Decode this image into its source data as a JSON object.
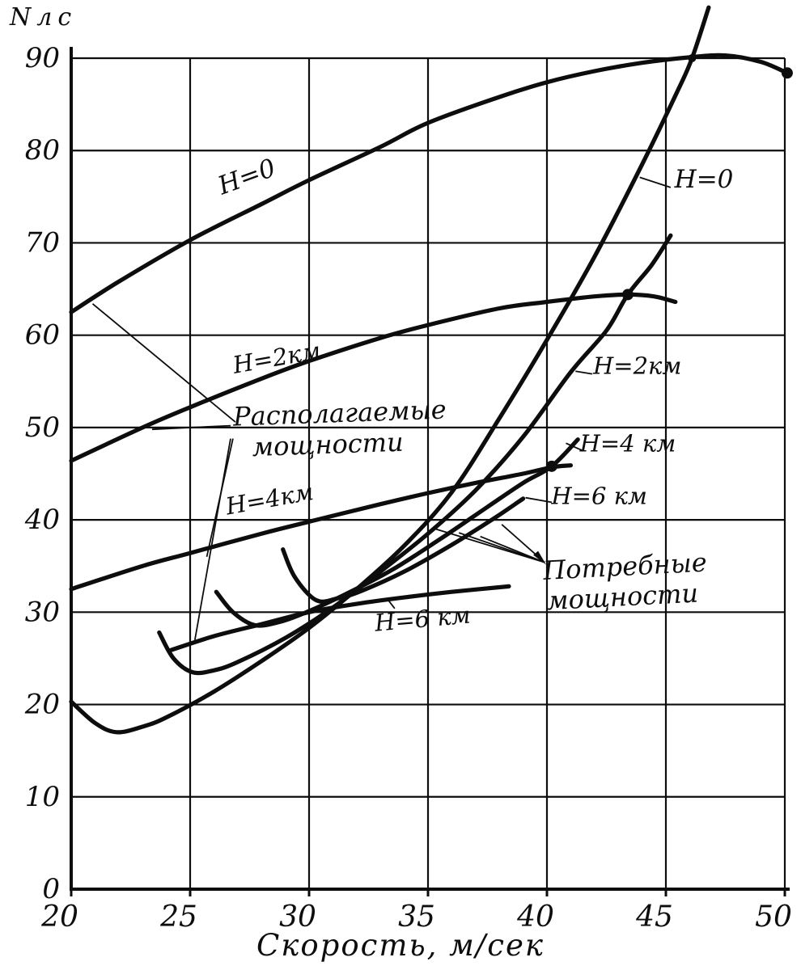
{
  "ink": "#0d0d0d",
  "background": "#ffffff",
  "chart_data": {
    "type": "line",
    "title": "",
    "ylabel": "Nлс",
    "xlabel": "Скорость,  м/сек",
    "xlim": [
      20,
      50
    ],
    "ylim": [
      0,
      90
    ],
    "x_ticks": [
      20,
      25,
      30,
      35,
      40,
      45,
      50
    ],
    "y_ticks": [
      0,
      10,
      20,
      30,
      40,
      50,
      60,
      70,
      80,
      90
    ],
    "grid": true,
    "legend_position": "inline-labels",
    "families": [
      {
        "name": "Располагаемые мощности",
        "series": [
          {
            "id": "avail-h0",
            "label": "H=0",
            "points": [
              [
                20,
                62.5
              ],
              [
                22,
                65.8
              ],
              [
                25,
                70.3
              ],
              [
                28,
                74.2
              ],
              [
                30,
                76.8
              ],
              [
                33,
                80.4
              ],
              [
                35,
                83.0
              ],
              [
                38,
                85.8
              ],
              [
                40,
                87.4
              ],
              [
                42,
                88.6
              ],
              [
                44,
                89.5
              ],
              [
                46,
                90.1
              ],
              [
                47.5,
                90.3
              ],
              [
                49,
                89.6
              ],
              [
                50.1,
                88.4
              ]
            ]
          },
          {
            "id": "avail-h2",
            "label": "H=2км",
            "points": [
              [
                20,
                46.4
              ],
              [
                23,
                50.0
              ],
              [
                25,
                52.2
              ],
              [
                28,
                55.3
              ],
              [
                30,
                57.2
              ],
              [
                33,
                59.7
              ],
              [
                35,
                61.1
              ],
              [
                38,
                62.9
              ],
              [
                40,
                63.6
              ],
              [
                42,
                64.2
              ],
              [
                43.4,
                64.4
              ],
              [
                44.5,
                64.2
              ],
              [
                45.4,
                63.6
              ]
            ]
          },
          {
            "id": "avail-h4",
            "label": "H=4км",
            "points": [
              [
                20,
                32.5
              ],
              [
                23,
                35.0
              ],
              [
                25,
                36.4
              ],
              [
                28,
                38.5
              ],
              [
                30,
                39.8
              ],
              [
                33,
                41.7
              ],
              [
                35,
                42.9
              ],
              [
                37,
                44.0
              ],
              [
                39,
                45.0
              ],
              [
                40.2,
                45.7
              ],
              [
                41,
                45.9
              ]
            ]
          },
          {
            "id": "avail-h6",
            "label": "H=6км",
            "points": [
              [
                24.2,
                25.9
              ],
              [
                26,
                27.4
              ],
              [
                28,
                28.7
              ],
              [
                30,
                30.0
              ],
              [
                32,
                30.9
              ],
              [
                34,
                31.6
              ],
              [
                36,
                32.2
              ],
              [
                38.4,
                32.8
              ]
            ]
          }
        ]
      },
      {
        "name": "Потребные мощности",
        "series": [
          {
            "id": "req-h0",
            "label": "H=0",
            "points": [
              [
                20,
                20.3
              ],
              [
                21,
                18.0
              ],
              [
                21.9,
                17.0
              ],
              [
                23,
                17.6
              ],
              [
                24,
                18.6
              ],
              [
                26,
                21.4
              ],
              [
                28,
                24.7
              ],
              [
                30,
                28.3
              ],
              [
                32,
                32.5
              ],
              [
                34,
                37.2
              ],
              [
                36,
                43.0
              ],
              [
                38,
                51.0
              ],
              [
                40,
                59.5
              ],
              [
                42,
                68.5
              ],
              [
                44,
                78.5
              ],
              [
                45.5,
                86.5
              ],
              [
                46.1,
                90.0
              ],
              [
                46.8,
                95.5
              ]
            ]
          },
          {
            "id": "req-h2",
            "label": "H=2км",
            "points": [
              [
                23.7,
                27.8
              ],
              [
                24.3,
                25.0
              ],
              [
                25.1,
                23.5
              ],
              [
                26,
                23.7
              ],
              [
                27,
                24.6
              ],
              [
                29,
                27.2
              ],
              [
                31,
                30.5
              ],
              [
                33,
                34.4
              ],
              [
                35,
                38.5
              ],
              [
                37,
                43.2
              ],
              [
                39,
                49.0
              ],
              [
                41,
                56.0
              ],
              [
                42.5,
                60.5
              ],
              [
                43.4,
                64.4
              ],
              [
                44.4,
                67.6
              ],
              [
                45.2,
                70.8
              ]
            ]
          },
          {
            "id": "req-h4",
            "label": "H=4 км",
            "points": [
              [
                26.1,
                32.2
              ],
              [
                26.8,
                30.0
              ],
              [
                27.7,
                28.6
              ],
              [
                28.7,
                28.9
              ],
              [
                29.8,
                29.9
              ],
              [
                31.5,
                31.9
              ],
              [
                33.5,
                34.6
              ],
              [
                35.5,
                37.9
              ],
              [
                37.5,
                41.4
              ],
              [
                39,
                44.0
              ],
              [
                40.2,
                45.8
              ],
              [
                41.3,
                48.7
              ]
            ]
          },
          {
            "id": "req-h6",
            "label": "H=6 км",
            "points": [
              [
                28.9,
                36.8
              ],
              [
                29.4,
                33.8
              ],
              [
                30.3,
                31.3
              ],
              [
                31.2,
                31.5
              ],
              [
                32.2,
                32.3
              ],
              [
                34,
                34.4
              ],
              [
                36,
                37.3
              ],
              [
                37.8,
                40.2
              ],
              [
                39,
                42.3
              ]
            ]
          }
        ]
      }
    ],
    "intersection_markers": [
      {
        "x": 43.4,
        "y": 64.4,
        "r": 7
      },
      {
        "x": 40.2,
        "y": 45.8,
        "r": 7
      },
      {
        "x": 50.1,
        "y": 88.4,
        "r": 7
      },
      {
        "x": 46.1,
        "y": 90.0,
        "r": 5
      }
    ],
    "curve_labels": [
      {
        "id": "h0-left",
        "text": "H=0",
        "v": 27.5,
        "n": 76.3,
        "rot": -20,
        "size": 31
      },
      {
        "id": "h2-left",
        "text": "H=2км",
        "v": 28.7,
        "n": 56.7,
        "rot": -10,
        "size": 29
      },
      {
        "id": "h4-left",
        "text": "H=4км",
        "v": 28.4,
        "n": 41.4,
        "rot": -10,
        "size": 29
      },
      {
        "id": "h6-left",
        "text": "H=6 км",
        "v": 34.8,
        "n": 28.4,
        "rot": -5,
        "size": 29
      },
      {
        "id": "h0-right",
        "text": "H=0",
        "v": 46.6,
        "n": 76.0,
        "rot": 0,
        "size": 31
      },
      {
        "id": "h2-right",
        "text": "H=2км",
        "v": 43.8,
        "n": 55.8,
        "rot": 0,
        "size": 29
      },
      {
        "id": "h4-right",
        "text": "H=4 км",
        "v": 43.4,
        "n": 47.4,
        "rot": 0,
        "size": 29
      },
      {
        "id": "h6-right",
        "text": "H=6 км",
        "v": 42.2,
        "n": 41.7,
        "rot": 0,
        "size": 29
      },
      {
        "id": "avail-line1",
        "text": "Располагаемые",
        "v": 31.3,
        "n": 50.6,
        "rot": -2,
        "size": 32
      },
      {
        "id": "avail-line2",
        "text": "мощности",
        "v": 30.8,
        "n": 47.2,
        "rot": -2,
        "size": 32
      },
      {
        "id": "req-line1",
        "text": "Потребные",
        "v": 43.3,
        "n": 34.0,
        "rot": -3,
        "size": 32
      },
      {
        "id": "req-line2",
        "text": "мощности",
        "v": 43.2,
        "n": 30.7,
        "rot": -3,
        "size": 32
      }
    ],
    "leader_lines": [
      {
        "from": [
          26.9,
          50.6
        ],
        "to": [
          20.9,
          63.4
        ]
      },
      {
        "from": [
          26.7,
          50.2
        ],
        "to": [
          23.4,
          49.8
        ]
      },
      {
        "from": [
          26.8,
          48.8
        ],
        "to": [
          25.7,
          36.0
        ]
      },
      {
        "from": [
          26.7,
          48.8
        ],
        "to": [
          25.2,
          27.0
        ]
      },
      {
        "from": [
          39.9,
          35.4
        ],
        "to": [
          35.2,
          39.1
        ]
      },
      {
        "from": [
          39.9,
          35.4
        ],
        "to": [
          36.3,
          38.6
        ]
      },
      {
        "from": [
          39.9,
          35.4
        ],
        "to": [
          37.2,
          38.2
        ]
      },
      {
        "from": [
          39.9,
          35.4
        ],
        "to": [
          38.1,
          39.5
        ]
      },
      {
        "from": [
          45.2,
          76.0
        ],
        "to": [
          43.9,
          77.1
        ]
      },
      {
        "from": [
          41.9,
          55.8
        ],
        "to": [
          41.2,
          56.1
        ]
      },
      {
        "from": [
          41.5,
          47.5
        ],
        "to": [
          40.8,
          48.3
        ]
      },
      {
        "from": [
          40.2,
          41.9
        ],
        "to": [
          39.1,
          42.4
        ]
      },
      {
        "from": [
          33.6,
          30.4
        ],
        "to": [
          33.3,
          31.4
        ]
      }
    ],
    "leader_arrow_at": [
      39.9,
      35.4
    ]
  }
}
